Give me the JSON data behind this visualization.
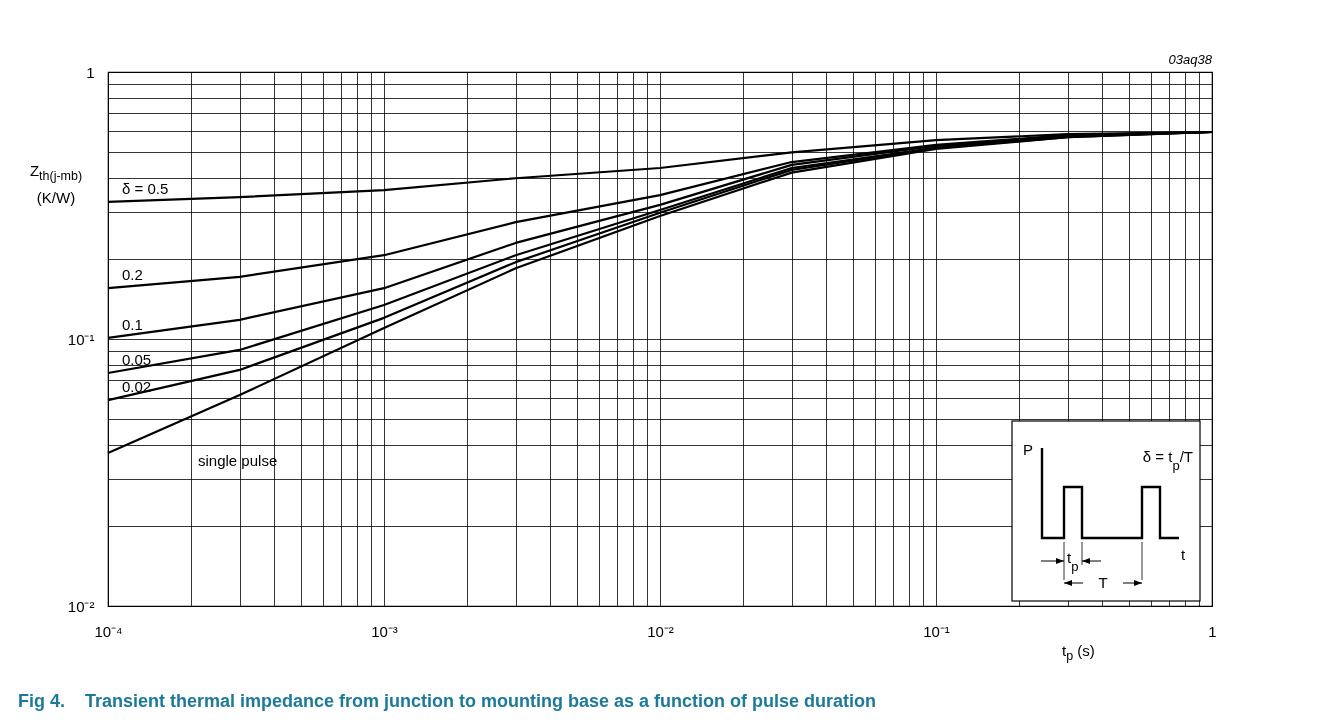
{
  "chart_data": {
    "type": "line",
    "title": "Fig 4.    Transient thermal impedance from junction to mounting base as a function of pulse duration",
    "xlabel": "t$_{p}$ (s)",
    "ylabel": "Z$_{th(j-mb)}$ (K/W)",
    "x": [
      0.0001,
      0.0003,
      0.001,
      0.003,
      0.01,
      0.03,
      0.1,
      0.3,
      1
    ],
    "series": [
      {
        "name": "δ = 0.5",
        "color": "#000000",
        "values": [
          0.326,
          0.34,
          0.361,
          0.4,
          0.437,
          0.5,
          0.556,
          0.585,
          0.596
        ]
      },
      {
        "name": "0.2",
        "color": "#000000",
        "values": [
          0.155,
          0.171,
          0.206,
          0.274,
          0.346,
          0.46,
          0.533,
          0.58,
          0.596
        ]
      },
      {
        "name": "0.1",
        "color": "#000000",
        "values": [
          0.101,
          0.118,
          0.155,
          0.229,
          0.318,
          0.449,
          0.529,
          0.575,
          0.596
        ]
      },
      {
        "name": "0.05",
        "color": "#000000",
        "values": [
          0.0746,
          0.091,
          0.134,
          0.206,
          0.304,
          0.437,
          0.52,
          0.575,
          0.596
        ]
      },
      {
        "name": "0.02",
        "color": "#000000",
        "values": [
          0.059,
          0.0766,
          0.12,
          0.194,
          0.297,
          0.43,
          0.52,
          0.57,
          0.596
        ]
      },
      {
        "name": "single pulse",
        "color": "#000000",
        "values": [
          0.0374,
          0.0617,
          0.11,
          0.184,
          0.289,
          0.42,
          0.515,
          0.57,
          0.596
        ]
      }
    ],
    "log": "xy",
    "xlim": [
      0.0001,
      1
    ],
    "ylim": [
      0.01,
      1
    ],
    "xticks": [
      {
        "value": 0.0001,
        "label": "10⁻⁴"
      },
      {
        "value": 0.0002,
        "label": null
      },
      {
        "value": 0.0003,
        "label": null
      },
      {
        "value": 0.0004,
        "label": null
      },
      {
        "value": 0.0005,
        "label": null
      },
      {
        "value": 0.0006,
        "label": null
      },
      {
        "value": 0.0007,
        "label": null
      },
      {
        "value": 0.0008,
        "label": null
      },
      {
        "value": 0.0009,
        "label": null
      },
      {
        "value": 0.001,
        "label": "10⁻³"
      },
      {
        "value": 0.002,
        "label": null
      },
      {
        "value": 0.003,
        "label": null
      },
      {
        "value": 0.004,
        "label": null
      },
      {
        "value": 0.005,
        "label": null
      },
      {
        "value": 0.006,
        "label": null
      },
      {
        "value": 0.007,
        "label": null
      },
      {
        "value": 0.008,
        "label": null
      },
      {
        "value": 0.009,
        "label": null
      },
      {
        "value": 0.01,
        "label": "10⁻²"
      },
      {
        "value": 0.02,
        "label": null
      },
      {
        "value": 0.03,
        "label": null
      },
      {
        "value": 0.04,
        "label": null
      },
      {
        "value": 0.05,
        "label": null
      },
      {
        "value": 0.06,
        "label": null
      },
      {
        "value": 0.07,
        "label": null
      },
      {
        "value": 0.08,
        "label": null
      },
      {
        "value": 0.09,
        "label": null
      },
      {
        "value": 0.1,
        "label": "10⁻¹"
      },
      {
        "value": 0.2,
        "label": null
      },
      {
        "value": 0.3,
        "label": null
      },
      {
        "value": 0.4,
        "label": null
      },
      {
        "value": 0.5,
        "label": null
      },
      {
        "value": 0.6,
        "label": null
      },
      {
        "value": 0.7,
        "label": null
      },
      {
        "value": 0.8,
        "label": null
      },
      {
        "value": 0.9,
        "label": null
      },
      1
    ],
    "yticks": [
      {
        "value": 0.01,
        "label": "10⁻²"
      },
      {
        "value": 0.02,
        "label": null
      },
      {
        "value": 0.03,
        "label": null
      },
      {
        "value": 0.04,
        "label": null
      },
      {
        "value": 0.05,
        "label": null
      },
      {
        "value": 0.06,
        "label": null
      },
      {
        "value": 0.07,
        "label": null
      },
      {
        "value": 0.08,
        "label": null
      },
      {
        "value": 0.09,
        "label": null
      },
      {
        "value": 0.1,
        "label": "10⁻¹"
      },
      {
        "value": 0.2,
        "label": null
      },
      {
        "value": 0.3,
        "label": null
      },
      {
        "value": 0.4,
        "label": null
      },
      {
        "value": 0.5,
        "label": null
      },
      {
        "value": 0.6,
        "label": null
      },
      {
        "value": 0.7,
        "label": null
      },
      {
        "value": 0.8,
        "label": null
      },
      {
        "value": 0.9,
        "label": null
      },
      1
    ],
    "grid": true,
    "legend": false,
    "marker": "none",
    "line_style": "solid",
    "annotations": [
      "03aq38",
      "P",
      "δ = t$_{p}$/T",
      "t$_{p}$",
      "T",
      "t"
    ]
  }
}
